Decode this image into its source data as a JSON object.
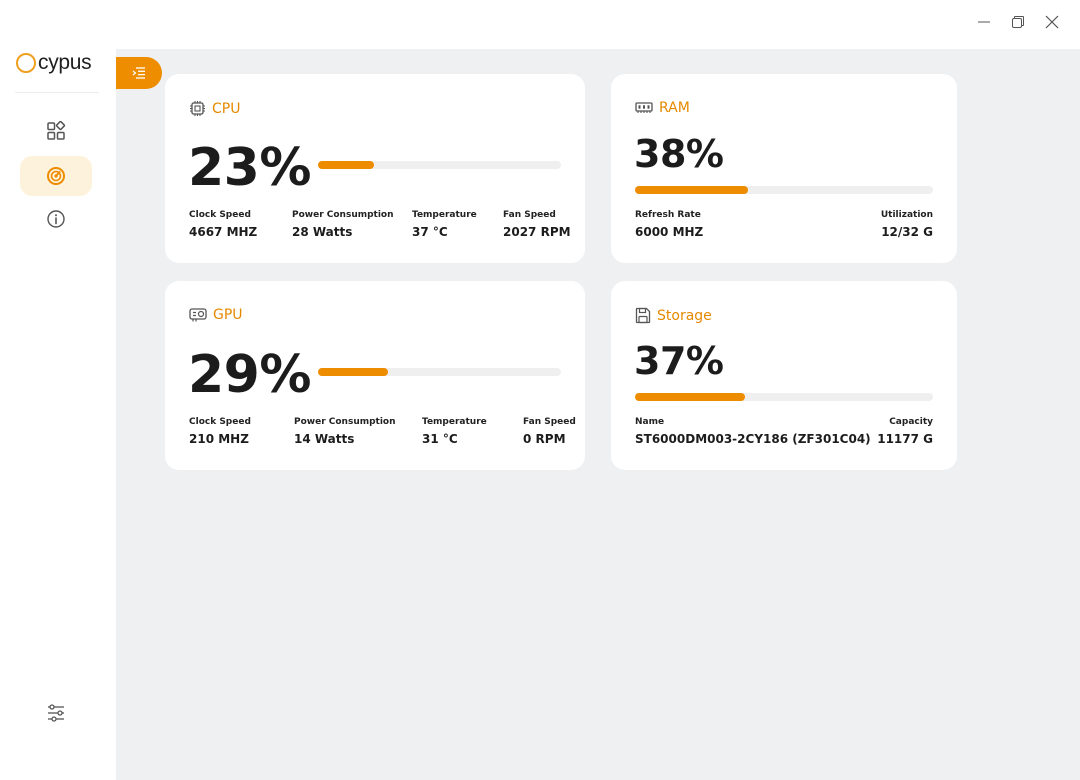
{
  "app": {
    "name": "cypus"
  },
  "colors": {
    "accent": "#ee8c00",
    "main_bg": "#eef0f2",
    "active_nav_bg": "#fdf3dc"
  },
  "window_controls": [
    "minimize-icon",
    "restore-icon",
    "close-icon"
  ],
  "sidebar": {
    "items": [
      {
        "icon": "dashboard-icon",
        "active": false
      },
      {
        "icon": "speedometer-icon",
        "active": true
      },
      {
        "icon": "info-icon",
        "active": false
      }
    ],
    "bottom_icon": "settings-sliders-icon"
  },
  "cards": {
    "cpu": {
      "title": "CPU",
      "icon": "cpu-icon",
      "percent_label": "23%",
      "percent": 23,
      "stats": [
        {
          "label": "Clock Speed",
          "value": "4667 MHZ"
        },
        {
          "label": "Power Consumption",
          "value": "28 Watts"
        },
        {
          "label": "Temperature",
          "value": "37 °C"
        },
        {
          "label": "Fan Speed",
          "value": "2027 RPM"
        }
      ]
    },
    "ram": {
      "title": "RAM",
      "icon": "memory-icon",
      "percent_label": "38%",
      "percent": 38,
      "stats": [
        {
          "label": "Refresh Rate",
          "value": "6000 MHZ"
        },
        {
          "label": "Utilization",
          "value": "12/32 G"
        }
      ]
    },
    "gpu": {
      "title": "GPU",
      "icon": "gpu-icon",
      "percent_label": "29%",
      "percent": 29,
      "stats": [
        {
          "label": "Clock Speed",
          "value": "210 MHZ"
        },
        {
          "label": "Power Consumption",
          "value": "14 Watts"
        },
        {
          "label": "Temperature",
          "value": "31 °C"
        },
        {
          "label": "Fan Speed",
          "value": "0 RPM"
        }
      ]
    },
    "storage": {
      "title": "Storage",
      "icon": "storage-icon",
      "percent_label": "37%",
      "percent": 37,
      "stats": [
        {
          "label": "Name",
          "value": "ST6000DM003-2CY186 (ZF301C04)"
        },
        {
          "label": "Capacity",
          "value": "11177 G"
        }
      ]
    }
  }
}
